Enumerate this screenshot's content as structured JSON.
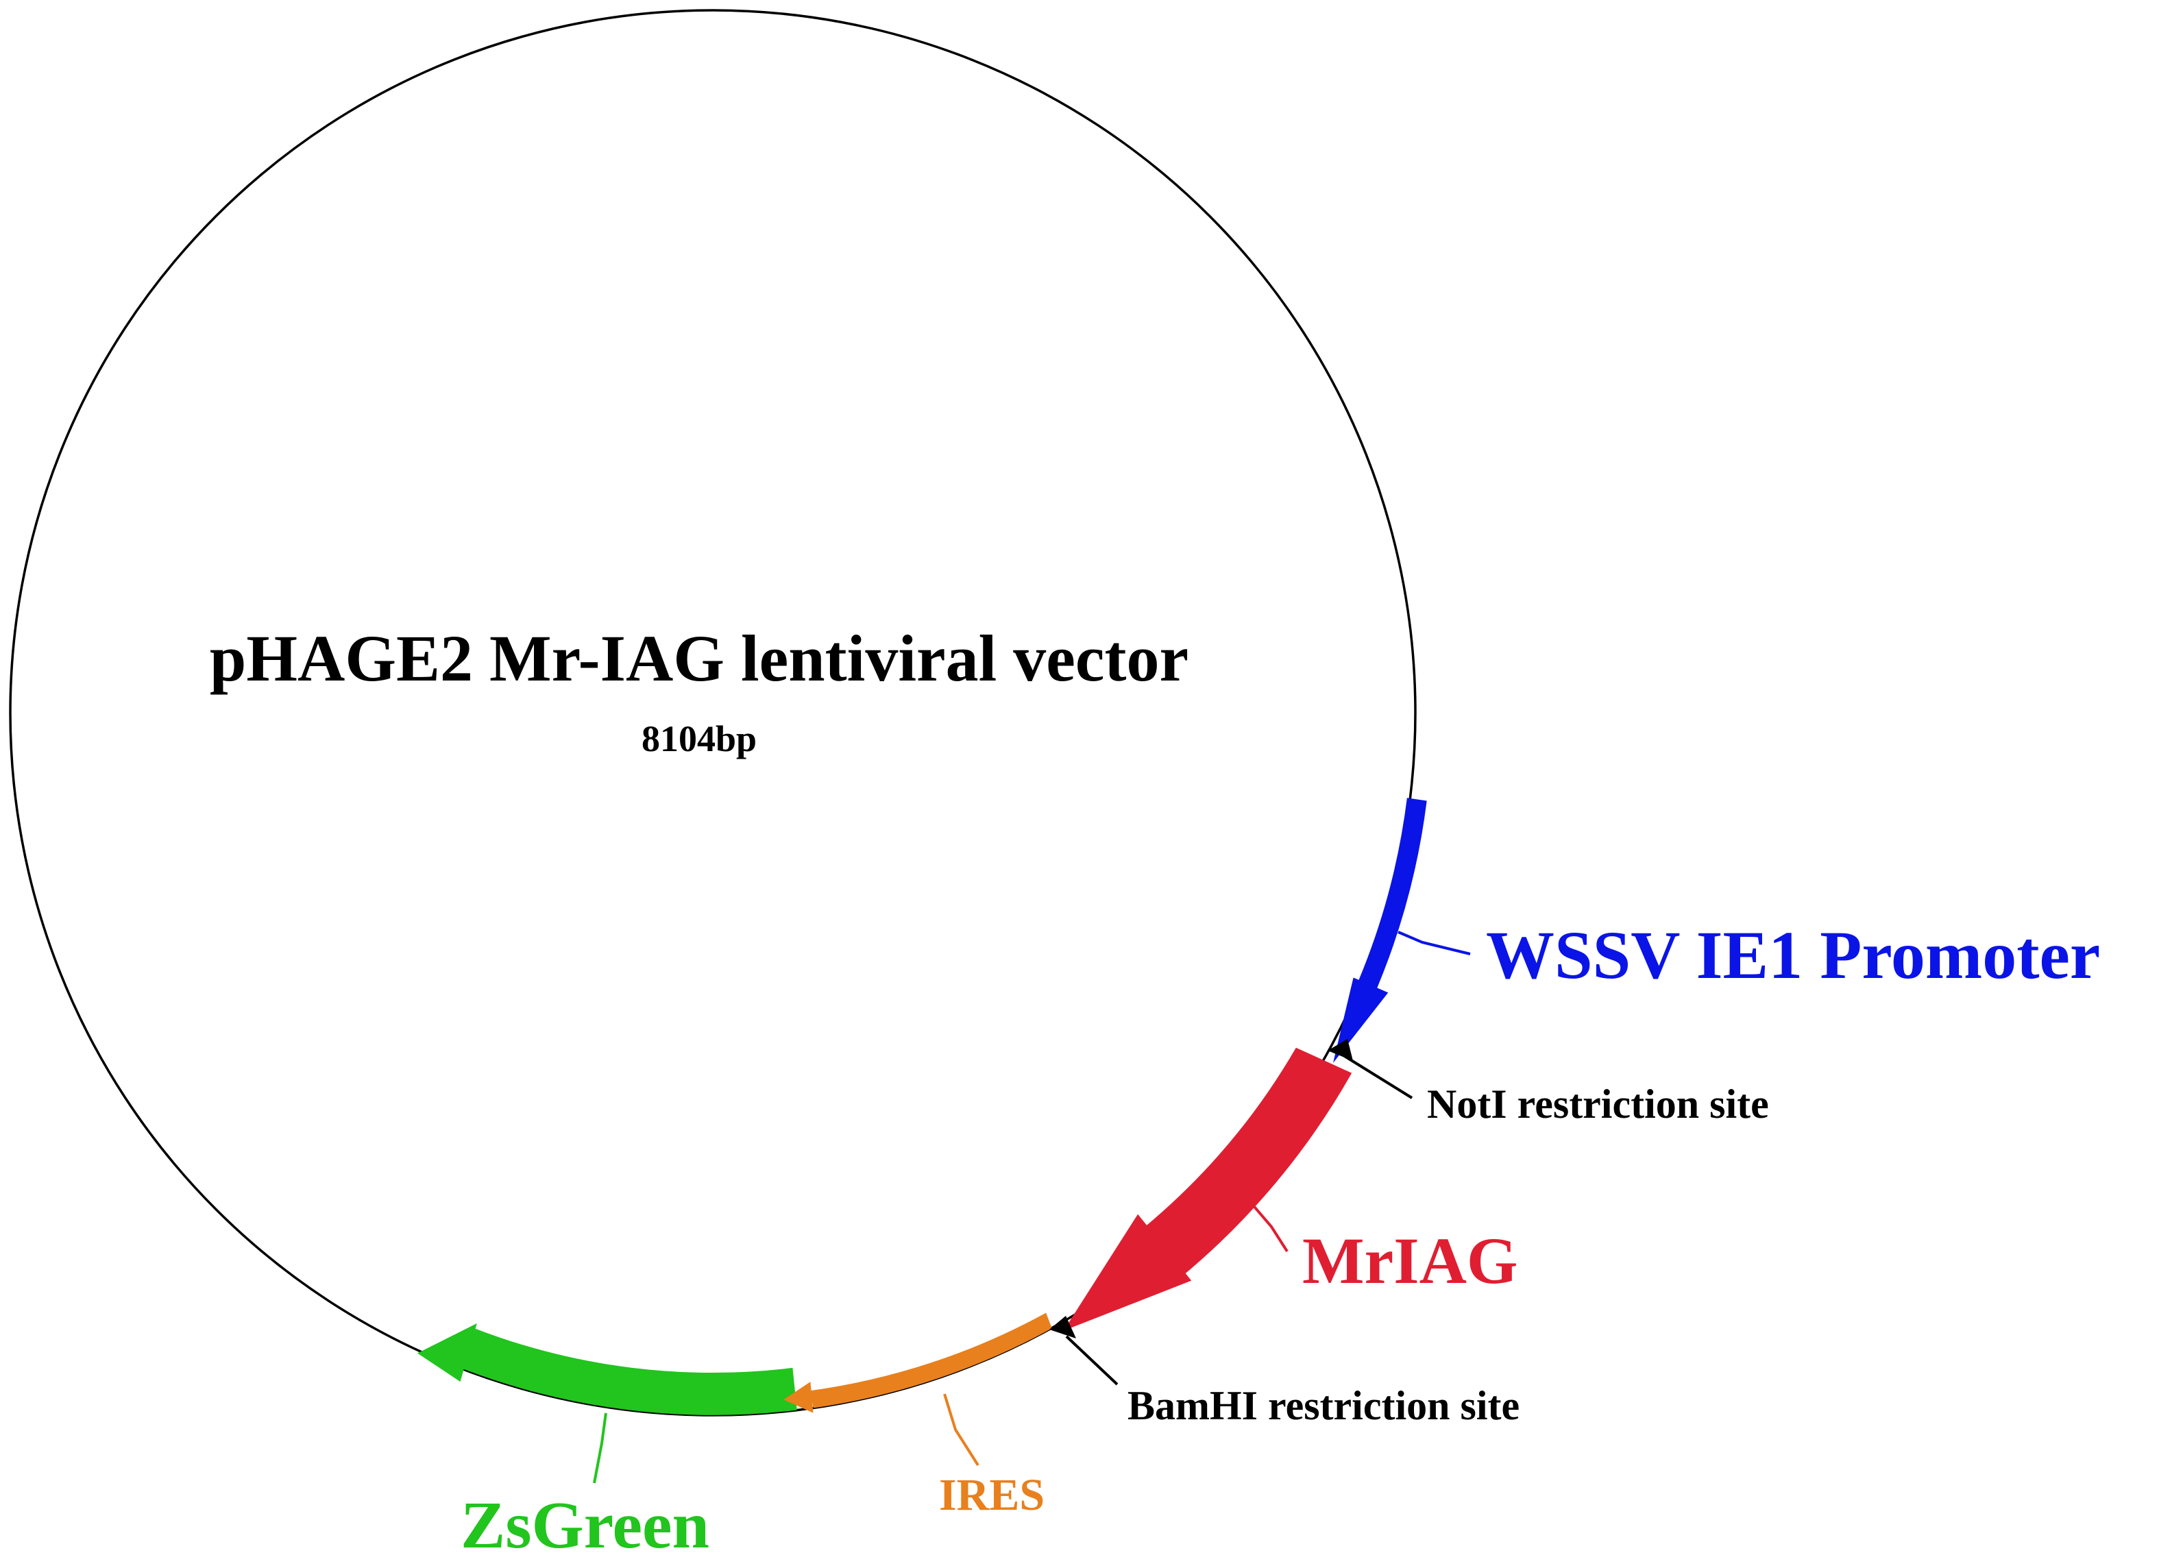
{
  "plasmid": {
    "name": "pHAGE2 Mr-IAG lentiviral vector",
    "size": "8104bp"
  },
  "features": [
    {
      "id": "promoter",
      "label": "WSSV IE1 Promoter",
      "color": "#0a14e6"
    },
    {
      "id": "mriag",
      "label": "MrIAG",
      "color": "#e01e32"
    },
    {
      "id": "ires",
      "label": "IRES",
      "color": "#e8801e"
    },
    {
      "id": "zsgreen",
      "label": "ZsGreen",
      "color": "#22c41e"
    }
  ],
  "sites": [
    {
      "id": "noti",
      "label": "NotI restriction site",
      "color": "#000000"
    },
    {
      "id": "bamhi",
      "label": "BamHI restriction site",
      "color": "#000000"
    }
  ]
}
